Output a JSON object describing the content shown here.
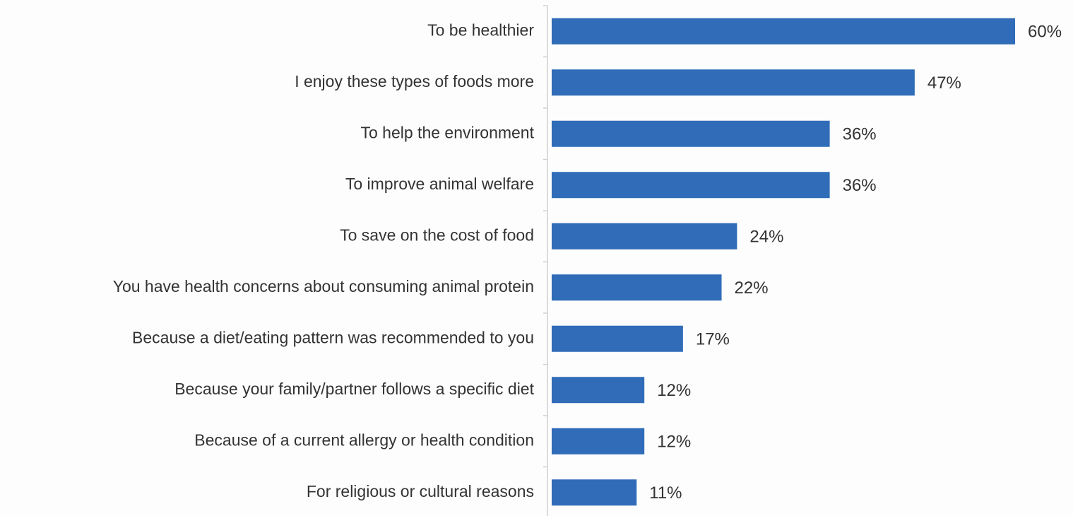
{
  "chart_data": {
    "type": "bar",
    "orientation": "horizontal",
    "categories": [
      "To be healthier",
      "I enjoy these types of foods more",
      "To help the environment",
      "To improve animal welfare",
      "To save on the cost of food",
      "You have health concerns about consuming animal protein",
      "Because a diet/eating pattern was recommended to you",
      "Because your family/partner follows a specific diet",
      "Because of a current allergy or health condition",
      "For religious or cultural reasons"
    ],
    "values": [
      60,
      47,
      36,
      36,
      24,
      22,
      17,
      12,
      12,
      11
    ],
    "value_labels": [
      "60%",
      "47%",
      "36%",
      "36%",
      "24%",
      "22%",
      "17%",
      "12%",
      "12%",
      "11%"
    ],
    "color": "#306cb8"
  }
}
